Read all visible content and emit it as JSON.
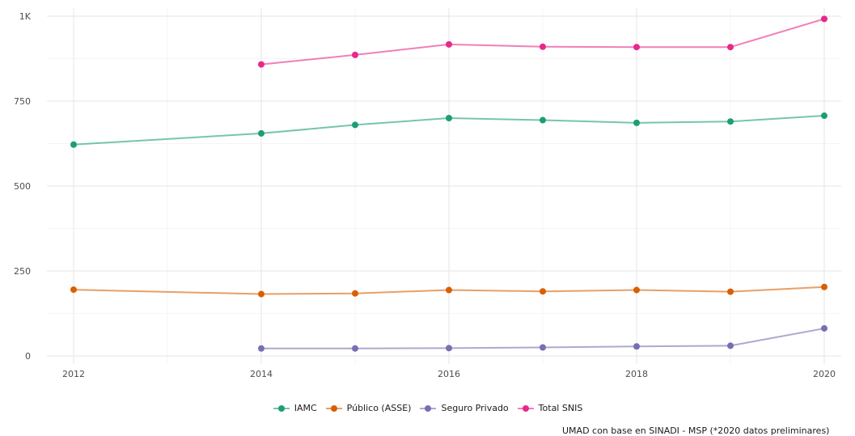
{
  "chart_data": {
    "type": "line",
    "title": "",
    "xlabel": "",
    "ylabel": "",
    "x": [
      2012,
      2013,
      2014,
      2015,
      2016,
      2017,
      2018,
      2019,
      2020
    ],
    "xlim": [
      2012,
      2020
    ],
    "ylim": [
      0,
      1000
    ],
    "x_ticks": [
      2012,
      2014,
      2016,
      2018,
      2020
    ],
    "x_tick_labels": [
      "2012",
      "2014",
      "2016",
      "2018",
      "2020"
    ],
    "y_ticks": [
      0,
      250,
      500,
      750,
      1000
    ],
    "y_tick_labels": [
      "0",
      "250",
      "500",
      "750",
      "1K"
    ],
    "grid": true,
    "legend_position": "bottom",
    "series": [
      {
        "name": "IAMC",
        "color": "#1b9e77",
        "values": [
          622,
          null,
          655,
          680,
          700,
          694,
          686,
          690,
          707
        ]
      },
      {
        "name": "Público (ASSE)",
        "color": "#d95f02",
        "values": [
          195,
          null,
          182,
          184,
          194,
          190,
          194,
          189,
          203
        ]
      },
      {
        "name": "Seguro Privado",
        "color": "#7570b3",
        "values": [
          null,
          null,
          22,
          22,
          23,
          25,
          28,
          30,
          81
        ]
      },
      {
        "name": "Total SNIS",
        "color": "#e7298a",
        "values": [
          null,
          null,
          858,
          886,
          917,
          910,
          909,
          909,
          992
        ]
      }
    ],
    "caption": "UMAD con base en SINADI - MSP (*2020 datos preliminares)"
  }
}
